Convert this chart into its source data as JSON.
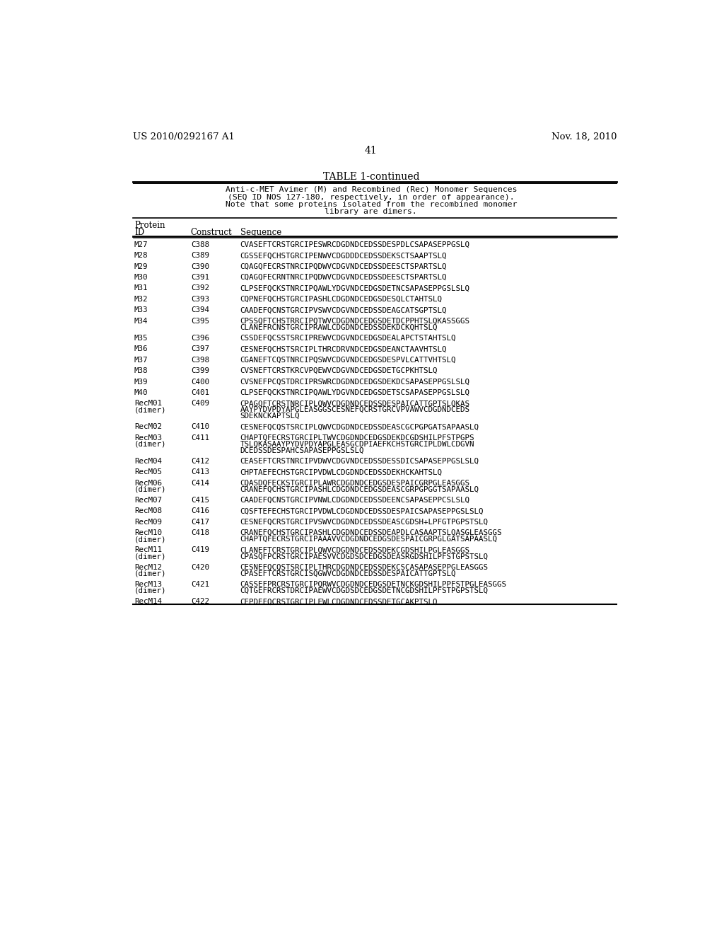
{
  "header_left": "US 2010/0292167 A1",
  "header_right": "Nov. 18, 2010",
  "page_number": "41",
  "table_title": "TABLE 1-continued",
  "table_note_lines": [
    "Anti-c-MET Avimer (M) and Recombined (Rec) Monomer Sequences",
    "(SEQ ID NOS 127-180, respectively, in order of appearance).",
    "Note that some proteins isolated from the recombined monomer",
    "library are dimers."
  ],
  "rows": [
    [
      "M27",
      "C388",
      [
        "CVASEFTCRSTGRCIPESWRCDGDNDCEDSSDESPDLCSAPASEPPGSLQ"
      ]
    ],
    [
      "M28",
      "C389",
      [
        "CGSSEFQCHSTGRCIPENWVCDGDDDCEDSSDEKSCTSAAPTSLQ"
      ]
    ],
    [
      "M29",
      "C390",
      [
        "CQAGQFECRSTNRCIPQDWVCDGVNDCEDSSDEESCTSPARTSLQ"
      ]
    ],
    [
      "M30",
      "C391",
      [
        "CQAGQFECRNTNRCIPQDWVCDGVNDCEDSSDEESCTSPARTSLQ"
      ]
    ],
    [
      "M31",
      "C392",
      [
        "CLPSEFQCKSTNRCIPQAWLYDGVNDCEDGSDETNCSAPASEPPGSLSLQ"
      ]
    ],
    [
      "M32",
      "C393",
      [
        "CQPNEFQCHSTGRCIPASHLCDGDNDCEDGSDESQLCTAHTSLQ"
      ]
    ],
    [
      "M33",
      "C394",
      [
        "CAADEFQCNSTGRCIPVSWVCDGVNDCEDSSDEAGCATSGPTSLQ"
      ]
    ],
    [
      "M34",
      "C395",
      [
        "CPSSQFTCHSTRRCIPQTWVCDGDNDCEDGSDETDCPPHTSLQKASSGGS",
        "CLANEFRCNSTGRCIPRAWLCDGDNDCEDSSDEKDCKQHTSLQ"
      ]
    ],
    [
      "M35",
      "C396",
      [
        "CSSDEFQCSSTSRCIPREWVCDGVNDCEDGSDEALAPCTSTAHTSLQ"
      ]
    ],
    [
      "M36",
      "C397",
      [
        "CESNEFQCHSTSRCIPLTHRCDRVNDCEDGSDEANCTAAVHTSLQ"
      ]
    ],
    [
      "M37",
      "C398",
      [
        "CGANEFTCQSTNRCIPQSWVCDGVNDCEDGSDESPVLCATTVHTSLQ"
      ]
    ],
    [
      "M38",
      "C399",
      [
        "CVSNEFTCRSTKRCVPQEWVCDGVNDCEDGSDETGCPKHTSLQ"
      ]
    ],
    [
      "M39",
      "C400",
      [
        "CVSNEFPCQSTDRCIPRSWRCDGDNDCEDGSDEKDCSAPASEPPGSLSLQ"
      ]
    ],
    [
      "M40",
      "C401",
      [
        "CLPSEFQCKSTNRCIPQAWLYDGVNDCEDGSDETSCSAPASEPPGSLSLQ"
      ]
    ],
    [
      "RecM01\n(dimer)",
      "C409",
      [
        "CPAGQFTCRSTNRCIPLQWVCDGDNDCEDSSDESPAICATTGPTSLQKAS",
        "AAYPYDVPDYAPGLEASGGSCESNEFQCRSTGRCVPVAWVCDGDNDCEDS",
        "SDEKNCKAPTSLQ"
      ]
    ],
    [
      "RecM02",
      "C410",
      [
        "CESNEFQCQSTSRCIPLQWVCDGDNDCEDSSDEASCGCPGPGATSAPAASLQ"
      ]
    ],
    [
      "RecM03\n(dimer)",
      "C411",
      [
        "CHAPTQFECRSTGRCIPLTWVCDGDNDCEDGSDEKDCGDSHILPFSTPGPS",
        "TSLQKASAAYPYDVPDYAPGLEASGCDPIAEFKCHSTGRCIPLDWLCDGVN",
        "DCEDSSDESPAHCSAPASEPPGSLSLQ"
      ]
    ],
    [
      "RecM04",
      "C412",
      [
        "CEASEFTCRSTNRCIPVDWVCDGVNDCEDSSDESSDICSAPASEPPGSLSLQ"
      ]
    ],
    [
      "RecM05",
      "C413",
      [
        "CHPTAEFECHSTGRCIPVDWLCDGDNDCEDSSDEKHCKAHTSLQ"
      ]
    ],
    [
      "RecM06\n(dimer)",
      "C414",
      [
        "CQASDQFECKSTGRCIPLAWRCDGDNDCEDGSDESPAICGRPGLEASGGS",
        "CRANEFQCHSTGRCIPASHLCDGDNDCEDGSDEASCGRPGPGGTSAPAASLQ"
      ]
    ],
    [
      "RecM07",
      "C415",
      [
        "CAADEFQCNSTGRCIPVNWLCDGDNDCEDSSDEENCSAPASEPPCSLSLQ"
      ]
    ],
    [
      "RecM08",
      "C416",
      [
        "CQSFTEFECHSTGRCIPVDWLCDGDNDCEDSSDESPAICSAPASEPPGSLSLQ"
      ]
    ],
    [
      "RecM09",
      "C417",
      [
        "CESNEFQCRSTGRCIPVSWVCDGDNDCEDSSDEASCGDSH+LPFGTPGPSTSLQ"
      ]
    ],
    [
      "RecM10\n(dimer)",
      "C418",
      [
        "CRANEFQCHSTGRCIPASHLCDGDNDCEDSSDEAPDLCASAAPTSLQASGLEASGGS",
        "CHAPTQFECRSTGRCIPAAAVVCDGDNDCEDGSDESPAICGRPGLGATSAPAASLQ"
      ]
    ],
    [
      "RecM11\n(dimer)",
      "C419",
      [
        "CLANEFTCRSTGRCIPLQWVCDGDNDCEDSSDEKCGDSHILPGLEASGGS",
        "CPASQFPCRSTGRCIPAESVVCDGDSDCEDGSDEASRGDSHILPFSTGPSTSLQ"
      ]
    ],
    [
      "RecM12\n(dimer)",
      "C420",
      [
        "CESNEFQCQSTSRCIPLTHRCDGDNDCEDSSDEKCSCASAPASEPPGLEASGGS",
        "CPASEFTCRSTGRCISQGWVCDGDNDCEDSSDESPAICATTGPTSLQ"
      ]
    ],
    [
      "RecM13\n(dimer)",
      "C421",
      [
        "CASSEFPRCRSTGRCIPQRWVCDGDNDCEDGSDETNCKGDSHILPPFSTPGLEASGGS",
        "CQTGEFRCRSTDRCIPAEWVCDGDSDCEDGSDETNCGDSHILPFSTPGPSTSLQ"
      ]
    ],
    [
      "RecM14",
      "C422",
      [
        "CEPDEFQCRSTGRCIPLEWLCDGDNDCEDSSDETGCAKPTSLQ"
      ]
    ]
  ]
}
